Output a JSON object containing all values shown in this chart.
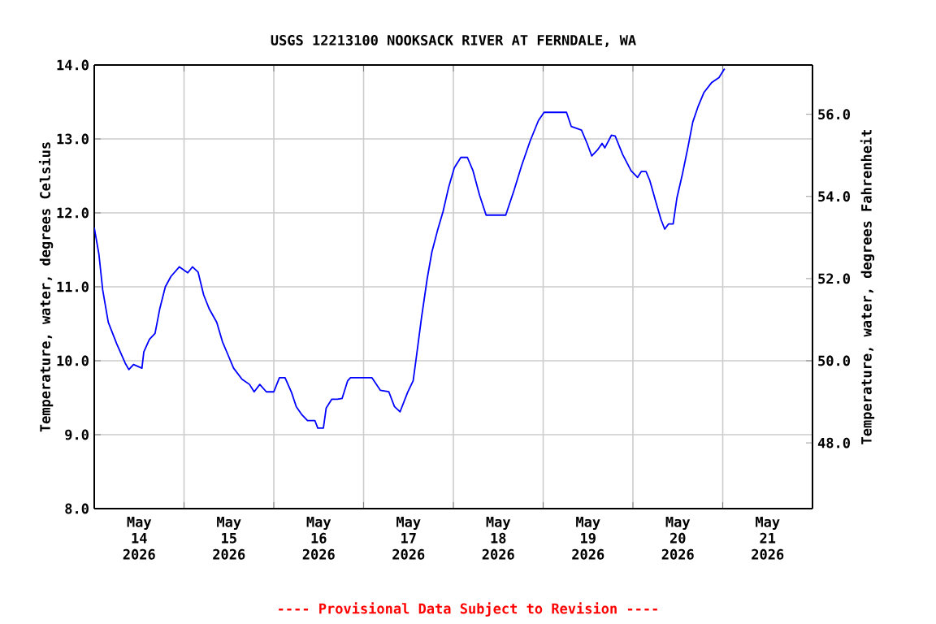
{
  "chart_data": {
    "type": "line",
    "title": "USGS 12213100 NOOKSACK RIVER AT FERNDALE, WA",
    "ylabel": "Temperature, water, degrees Celsius",
    "y2label": "Temperature, water, degrees Fahrenheit",
    "annotations": [
      "---- Provisional Data Subject to Revision ----"
    ],
    "xlim": [
      "2026-05-14T00:00",
      "2026-05-22T00:00"
    ],
    "xticks": [
      {
        "value": "2026-05-14T12:00",
        "label": "May 14 2026"
      },
      {
        "value": "2026-05-15T12:00",
        "label": "May 15 2026"
      },
      {
        "value": "2026-05-16T12:00",
        "label": "May 16 2026"
      },
      {
        "value": "2026-05-17T12:00",
        "label": "May 17 2026"
      },
      {
        "value": "2026-05-18T12:00",
        "label": "May 18 2026"
      },
      {
        "value": "2026-05-19T12:00",
        "label": "May 19 2026"
      },
      {
        "value": "2026-05-20T12:00",
        "label": "May 20 2026"
      },
      {
        "value": "2026-05-21T12:00",
        "label": "May 21 2026"
      },
      {
        "value": "2026-05-15T00:00",
        "label": null
      },
      {
        "value": "2026-05-16T00:00",
        "label": null
      },
      {
        "value": "2026-05-17T00:00",
        "label": null
      },
      {
        "value": "2026-05-18T00:00",
        "label": null
      },
      {
        "value": "2026-05-19T00:00",
        "label": null
      },
      {
        "value": "2026-05-20T00:00",
        "label": null
      },
      {
        "value": "2026-05-21T00:00",
        "label": null
      }
    ],
    "ylim": [
      8,
      14
    ],
    "yticks": [
      {
        "value": 8,
        "label": "8.0"
      },
      {
        "value": 9,
        "label": "9.0"
      },
      {
        "value": 10,
        "label": "10.0"
      },
      {
        "value": 11,
        "label": "11.0"
      },
      {
        "value": 12,
        "label": "12.0"
      },
      {
        "value": 13,
        "label": "13.0"
      },
      {
        "value": 14,
        "label": "14.0"
      }
    ],
    "y2lim": [
      46.4,
      57.2
    ],
    "y2ticks": [
      {
        "value": 48,
        "label": "48.0"
      },
      {
        "value": 50,
        "label": "50.0"
      },
      {
        "value": 52,
        "label": "52.0"
      },
      {
        "value": 54,
        "label": "54.0"
      },
      {
        "value": 56,
        "label": "56.0"
      }
    ],
    "grid": true,
    "series": [
      {
        "color": "#0000ff",
        "x": [
          "2026-05-14T00:00",
          "2026-05-14T01:15",
          "2026-05-14T02:15",
          "2026-05-14T03:45",
          "2026-05-14T06:00",
          "2026-05-14T08:15",
          "2026-05-14T09:15",
          "2026-05-14T10:30",
          "2026-05-14T12:45",
          "2026-05-14T13:15",
          "2026-05-14T14:45",
          "2026-05-14T16:15",
          "2026-05-14T17:30",
          "2026-05-14T19:00",
          "2026-05-14T20:30",
          "2026-05-14T22:45",
          "2026-05-15T01:00",
          "2026-05-15T02:15",
          "2026-05-15T03:45",
          "2026-05-15T05:15",
          "2026-05-15T06:45",
          "2026-05-15T08:45",
          "2026-05-15T10:15",
          "2026-05-15T11:45",
          "2026-05-15T13:15",
          "2026-05-15T15:30",
          "2026-05-15T17:30",
          "2026-05-15T18:45",
          "2026-05-15T20:15",
          "2026-05-15T22:00",
          "2026-05-16T00:00",
          "2026-05-16T01:30",
          "2026-05-16T03:00",
          "2026-05-16T04:45",
          "2026-05-16T06:00",
          "2026-05-16T07:30",
          "2026-05-16T09:00",
          "2026-05-16T11:00",
          "2026-05-16T11:45",
          "2026-05-16T13:15",
          "2026-05-16T14:00",
          "2026-05-16T15:30",
          "2026-05-16T17:00",
          "2026-05-16T18:15",
          "2026-05-16T19:45",
          "2026-05-16T20:30",
          "2026-05-17T02:15",
          "2026-05-17T04:30",
          "2026-05-17T06:45",
          "2026-05-17T08:15",
          "2026-05-17T09:45",
          "2026-05-17T11:45",
          "2026-05-17T13:15",
          "2026-05-17T14:00",
          "2026-05-17T15:30",
          "2026-05-17T17:00",
          "2026-05-17T18:15",
          "2026-05-17T19:45",
          "2026-05-17T21:15",
          "2026-05-17T22:45",
          "2026-05-18T00:15",
          "2026-05-18T02:00",
          "2026-05-18T03:45",
          "2026-05-18T05:15",
          "2026-05-18T07:00",
          "2026-05-18T08:45",
          "2026-05-18T14:00",
          "2026-05-18T16:15",
          "2026-05-18T18:15",
          "2026-05-18T20:30",
          "2026-05-18T22:45",
          "2026-05-19T00:15",
          "2026-05-19T06:15",
          "2026-05-19T07:30",
          "2026-05-19T10:15",
          "2026-05-19T11:45",
          "2026-05-19T13:00",
          "2026-05-19T14:30",
          "2026-05-19T15:45",
          "2026-05-19T16:30",
          "2026-05-19T18:15",
          "2026-05-19T19:15",
          "2026-05-19T21:15",
          "2026-05-19T23:30",
          "2026-05-20T01:15",
          "2026-05-20T02:15",
          "2026-05-20T03:30",
          "2026-05-20T04:30",
          "2026-05-20T06:00",
          "2026-05-20T07:30",
          "2026-05-20T08:30",
          "2026-05-20T09:30",
          "2026-05-20T10:45",
          "2026-05-20T11:45",
          "2026-05-20T13:15",
          "2026-05-20T14:45",
          "2026-05-20T16:00",
          "2026-05-20T17:30",
          "2026-05-20T19:00",
          "2026-05-20T21:00",
          "2026-05-20T23:00",
          "2026-05-21T00:30"
        ],
        "values": [
          11.8,
          11.44,
          10.96,
          10.52,
          10.23,
          9.97,
          9.88,
          9.95,
          9.9,
          10.12,
          10.29,
          10.37,
          10.7,
          11.0,
          11.14,
          11.27,
          11.19,
          11.27,
          11.2,
          10.89,
          10.7,
          10.52,
          10.26,
          10.08,
          9.9,
          9.75,
          9.68,
          9.58,
          9.68,
          9.58,
          9.58,
          9.77,
          9.77,
          9.57,
          9.38,
          9.27,
          9.19,
          9.19,
          9.09,
          9.09,
          9.36,
          9.48,
          9.48,
          9.49,
          9.73,
          9.77,
          9.77,
          9.6,
          9.58,
          9.38,
          9.31,
          9.57,
          9.73,
          10.01,
          10.59,
          11.11,
          11.47,
          11.76,
          12.02,
          12.35,
          12.61,
          12.75,
          12.75,
          12.57,
          12.24,
          11.97,
          11.97,
          12.31,
          12.64,
          12.97,
          13.25,
          13.36,
          13.36,
          13.17,
          13.12,
          12.94,
          12.77,
          12.85,
          12.94,
          12.88,
          13.05,
          13.04,
          12.79,
          12.57,
          12.48,
          12.56,
          12.56,
          12.44,
          12.17,
          11.91,
          11.78,
          11.85,
          11.85,
          12.2,
          12.53,
          12.9,
          13.23,
          13.45,
          13.63,
          13.76,
          13.83,
          13.95
        ]
      }
    ]
  }
}
